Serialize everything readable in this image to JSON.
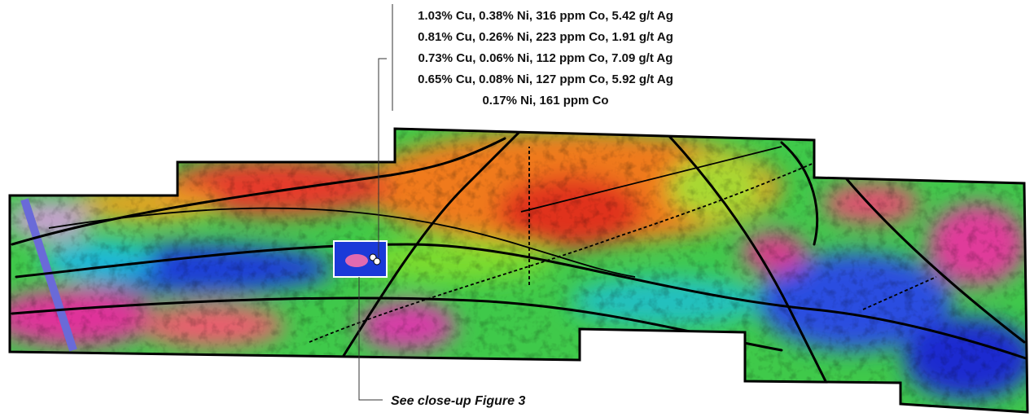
{
  "assays": [
    "1.03% Cu, 0.38% Ni, 316 ppm Co, 5.42 g/t Ag",
    "0.81% Cu, 0.26% Ni, 223 ppm Co, 1.91 g/t Ag",
    "0.73% Cu, 0.06% Ni, 112 ppm Co, 7.09 g/t Ag",
    "0.65% Cu, 0.08% Ni, 127 ppm Co, 5.92 g/t Ag",
    "0.17% Ni, 161 ppm Co"
  ],
  "callout": "See close-up Figure 3"
}
